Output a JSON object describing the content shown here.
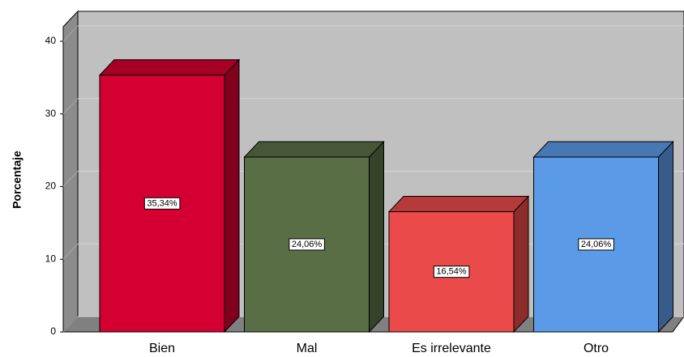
{
  "chart_data": {
    "type": "bar3d",
    "ylabel": "Porcentaje",
    "categories": [
      "Bien",
      "Mal",
      "Es irrelevante",
      "Otro"
    ],
    "values": [
      35.34,
      24.06,
      16.54,
      24.06
    ],
    "value_labels": [
      "35,34%",
      "24,06%",
      "16,54%",
      "24,06%"
    ],
    "colors": [
      "#d50032",
      "#5a6e46",
      "#ea4a4a",
      "#5b9ae6"
    ],
    "ylim": [
      0,
      42
    ],
    "yticks": [
      0,
      10,
      20,
      30,
      40
    ],
    "grid": true
  }
}
